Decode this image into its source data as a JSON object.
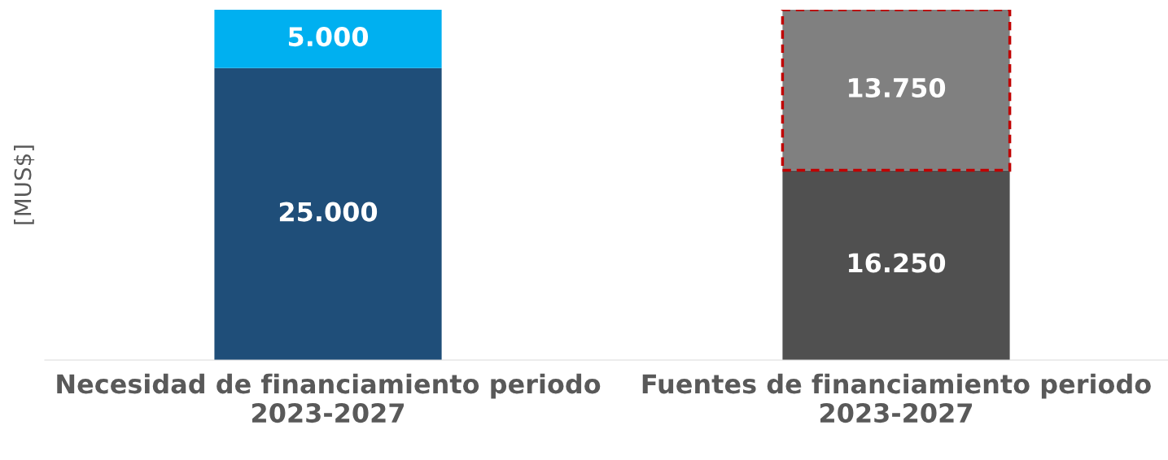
{
  "chart_data": {
    "type": "bar",
    "stacked": true,
    "ylabel": "[MUS$]",
    "categories": [
      "Necesidad de financiamiento periodo 2023-2027",
      "Fuentes de financiamiento periodo 2023-2027"
    ],
    "series": [
      {
        "colors": [
          "#1f4e79",
          "#505050"
        ],
        "values": [
          25000,
          16250
        ],
        "value_labels": [
          "25.000",
          "16.250"
        ]
      },
      {
        "colors": [
          "#00b0f0",
          "#808080"
        ],
        "values": [
          5000,
          13750
        ],
        "value_labels": [
          "5.000",
          "13.750"
        ]
      }
    ],
    "grid": false,
    "legend": false
  }
}
